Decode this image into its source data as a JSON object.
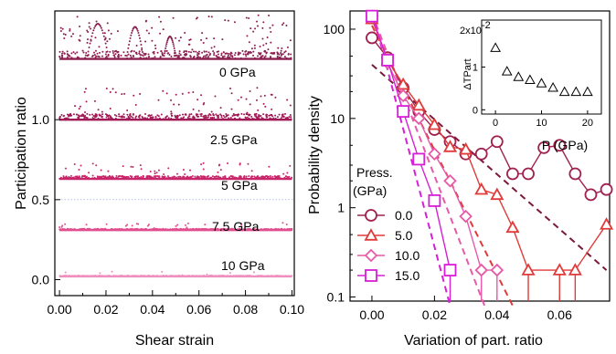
{
  "chart_data": [
    {
      "type": "scatter",
      "xlabel": "Shear strain",
      "ylabel": "Participation ratio",
      "xlim": [
        -0.002,
        0.101
      ],
      "ylim": [
        -0.1,
        1.68
      ],
      "xticks": [
        "0.00",
        "0.02",
        "0.04",
        "0.06",
        "0.08",
        "0.10"
      ],
      "yticks": [
        "0.0",
        "0.5",
        "1.0"
      ],
      "series": [
        {
          "name": "0 GPa",
          "baseline": 1.38,
          "color": "#8b1e4f"
        },
        {
          "name": "2.5 GPa",
          "baseline": 1.0,
          "color": "#a01a55"
        },
        {
          "name": "5 GPa",
          "baseline": 0.63,
          "color": "#c8266a"
        },
        {
          "name": "7.5 GPa",
          "baseline": 0.31,
          "color": "#e04f8f"
        },
        {
          "name": "10 GPa",
          "baseline": 0.02,
          "color": "#ef8fbf"
        }
      ]
    },
    {
      "type": "line",
      "xlabel": "Variation of part. ratio",
      "ylabel": "Probability density",
      "xlim": [
        -0.007,
        0.076
      ],
      "ylim_log": [
        0.09,
        160
      ],
      "xticks": [
        "0.00",
        "0.02",
        "0.04",
        "0.06"
      ],
      "yticks": [
        "0.1",
        "1",
        "10",
        "100"
      ],
      "legend_title": [
        "Press.",
        "(GPa)"
      ],
      "series": [
        {
          "name": "0.0",
          "color": "#a0204f",
          "marker": "circle",
          "x": [
            0.0,
            0.005,
            0.01,
            0.015,
            0.02,
            0.025,
            0.03,
            0.035,
            0.04,
            0.045,
            0.05,
            0.055,
            0.06,
            0.065,
            0.07,
            0.075
          ],
          "y": [
            80,
            48,
            22,
            12,
            7.5,
            5.5,
            4.0,
            4.0,
            5.5,
            2.4,
            2.4,
            4.7,
            5.0,
            2.4,
            1.4,
            1.6
          ],
          "fit": [
            [
              0.0,
              40
            ],
            [
              0.075,
              0.2
            ]
          ],
          "fit_color": "#7a1a3a"
        },
        {
          "name": "5.0",
          "color": "#e03a3a",
          "marker": "triangle",
          "x": [
            0.0,
            0.005,
            0.01,
            0.015,
            0.02,
            0.025,
            0.03,
            0.035,
            0.04,
            0.045,
            0.05,
            0.06,
            0.065,
            0.075
          ],
          "y": [
            130,
            45,
            24,
            14,
            8.5,
            4.8,
            4.5,
            1.6,
            1.4,
            0.6,
            0.2,
            0.2,
            0.2,
            0.65
          ],
          "fit": [
            [
              0.0,
              110
            ],
            [
              0.045,
              0.08
            ]
          ],
          "fit_color": "#e03a3a"
        },
        {
          "name": "10.0",
          "color": "#e65aa8",
          "marker": "diamond",
          "x": [
            0.0,
            0.005,
            0.01,
            0.015,
            0.02,
            0.025,
            0.03,
            0.035,
            0.04
          ],
          "y": [
            140,
            42,
            18,
            10,
            4.0,
            2.0,
            0.8,
            0.2,
            0.2
          ],
          "fit": [
            [
              0.0,
              150
            ],
            [
              0.036,
              0.08
            ]
          ],
          "fit_color": "#e65aa8"
        },
        {
          "name": "15.0",
          "color": "#d61fd6",
          "marker": "square",
          "x": [
            0.0,
            0.005,
            0.01,
            0.015,
            0.02,
            0.025
          ],
          "y": [
            140,
            45,
            12,
            3.5,
            1.2,
            0.2
          ],
          "fit": [
            [
              0.0,
              160
            ],
            [
              0.025,
              0.08
            ]
          ],
          "fit_color": "#d61fd6"
        }
      ],
      "inset": {
        "xlabel": "P (GPa)",
        "ylabel": "ΔTPart",
        "y_multiplier": "2x10",
        "y_multiplier_exp": "-2",
        "xticks": [
          "0",
          "10",
          "20"
        ],
        "yticks": [
          "0",
          "1"
        ],
        "xlim": [
          -3,
          23
        ],
        "ylim": [
          -0.1,
          2.1
        ],
        "x": [
          0,
          2.5,
          5,
          7.5,
          10,
          12.5,
          15,
          17.5,
          20
        ],
        "y": [
          1.45,
          0.9,
          0.77,
          0.7,
          0.62,
          0.52,
          0.42,
          0.42,
          0.42
        ]
      }
    }
  ]
}
